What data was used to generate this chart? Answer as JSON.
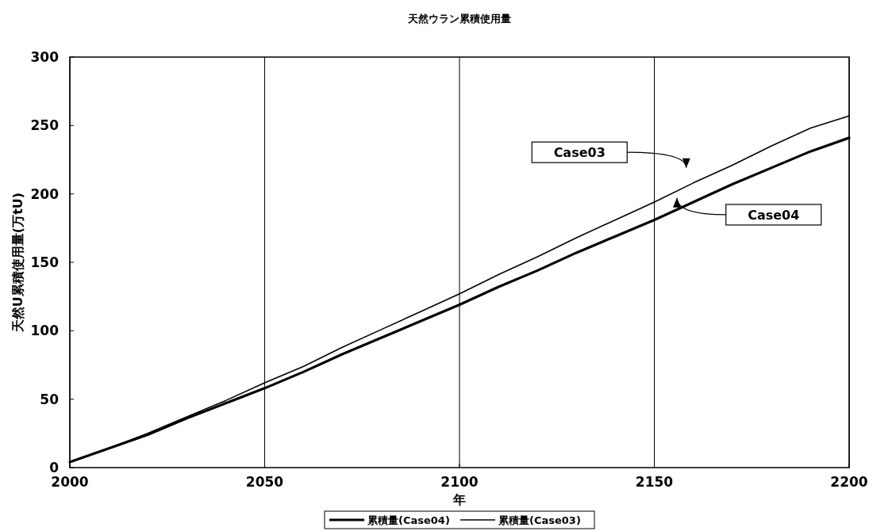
{
  "chart_data": {
    "type": "line",
    "title": "天然ウラン累積使用量",
    "xlabel": "年",
    "ylabel": "天然U累積使用量(万tU)",
    "x": [
      2000,
      2010,
      2020,
      2030,
      2040,
      2050,
      2060,
      2070,
      2080,
      2090,
      2100,
      2110,
      2120,
      2130,
      2140,
      2150,
      2160,
      2170,
      2180,
      2190,
      2200
    ],
    "series": [
      {
        "name": "累積量(Case04)",
        "color": "#000000",
        "values": [
          4,
          14,
          24,
          36,
          47,
          58,
          70,
          83,
          95,
          107,
          119,
          132,
          144,
          157,
          169,
          181,
          194,
          207,
          219,
          231,
          241
        ]
      },
      {
        "name": "累積量(Case03)",
        "color": "#000000",
        "values": [
          4,
          14,
          25,
          37,
          49,
          62,
          74,
          88,
          101,
          114,
          127,
          141,
          154,
          168,
          181,
          194,
          208,
          221,
          235,
          248,
          257
        ]
      }
    ],
    "xlim": [
      2000,
      2200
    ],
    "ylim": [
      0,
      300
    ],
    "xticks": [
      2000,
      2050,
      2100,
      2150,
      2200
    ],
    "yticks": [
      0,
      50,
      100,
      150,
      200,
      250,
      300
    ],
    "grid": "x",
    "legend": "bottom",
    "annotations": [
      "Case03",
      "Case04"
    ]
  }
}
